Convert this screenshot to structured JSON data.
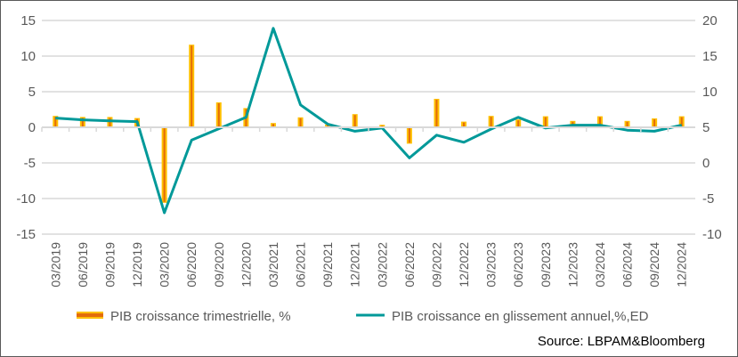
{
  "chart_data": {
    "type": "bar+line",
    "categories": [
      "03/2019",
      "06/2019",
      "09/2019",
      "12/2019",
      "03/2020",
      "06/2020",
      "09/2020",
      "12/2020",
      "03/2021",
      "06/2021",
      "09/2021",
      "12/2021",
      "03/2022",
      "06/2022",
      "09/2022",
      "12/2022",
      "03/2023",
      "06/2023",
      "09/2023",
      "12/2023",
      "03/2024",
      "06/2024",
      "09/2024",
      "12/2024"
    ],
    "series": [
      {
        "name": "PIB croissance trimestrielle, %",
        "type": "bar",
        "axis": "left",
        "color": "#FFC000",
        "inner_color": "#E36C09",
        "values": [
          1.6,
          1.45,
          1.45,
          1.3,
          -10.6,
          11.6,
          3.5,
          2.7,
          0.6,
          1.4,
          0.4,
          1.85,
          0.35,
          -2.3,
          4.0,
          0.8,
          1.6,
          1.1,
          1.55,
          0.9,
          1.55,
          0.9,
          1.25,
          1.55
        ]
      },
      {
        "name": "PIB croissance en glissement annuel,%,ED",
        "type": "line",
        "axis": "right",
        "color": "#009999",
        "values": [
          6.3,
          6.05,
          5.9,
          5.8,
          -7.0,
          3.2,
          4.8,
          6.4,
          18.9,
          8.15,
          5.45,
          4.45,
          4.9,
          0.7,
          3.9,
          2.9,
          4.75,
          6.4,
          4.9,
          5.3,
          5.3,
          4.6,
          4.45,
          5.3
        ]
      }
    ],
    "left_axis": {
      "ylim": [
        -15,
        15
      ],
      "ticks": [
        "-15",
        "-10",
        "-5",
        "0",
        "5",
        "10",
        "15"
      ]
    },
    "right_axis": {
      "ylim": [
        -10,
        20
      ],
      "ticks": [
        "-10",
        "-5",
        "0",
        "5",
        "10",
        "15",
        "20"
      ]
    },
    "grid": true,
    "legend_position": "bottom"
  },
  "source": "Source: LBPAM&Bloomberg"
}
